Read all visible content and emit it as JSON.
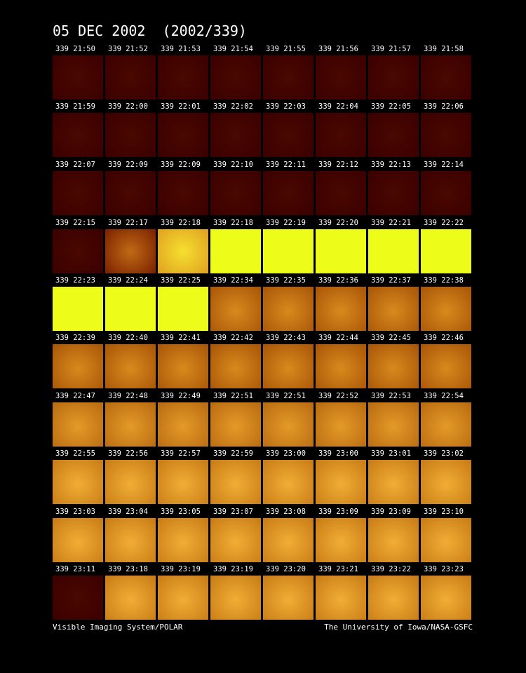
{
  "title": "05 DEC 2002  (2002/339)",
  "panels": [
    [
      "339 21:50",
      "339 21:52",
      "339 21:53",
      "339 21:54",
      "339 21:55",
      "339 21:56",
      "339 21:57",
      "339 21:58"
    ],
    [
      "339 21:59",
      "339 22:00",
      "339 22:01",
      "339 22:02",
      "339 22:03",
      "339 22:04",
      "339 22:05",
      "339 22:06"
    ],
    [
      "339 22:07",
      "339 22:09",
      "339 22:09",
      "339 22:10",
      "339 22:11",
      "339 22:12",
      "339 22:13",
      "339 22:14"
    ],
    [
      "339 22:15",
      "339 22:17",
      "339 22:18",
      "339 22:18",
      "339 22:19",
      "339 22:20",
      "339 22:21",
      "339 22:22"
    ],
    [
      "339 22:23",
      "339 22:24",
      "339 22:25",
      "339 22:34",
      "339 22:35",
      "339 22:36",
      "339 22:37",
      "339 22:38"
    ],
    [
      "339 22:39",
      "339 22:40",
      "339 22:41",
      "339 22:42",
      "339 22:43",
      "339 22:44",
      "339 22:45",
      "339 22:46"
    ],
    [
      "339 22:47",
      "339 22:48",
      "339 22:49",
      "339 22:51",
      "339 22:51",
      "339 22:52",
      "339 22:53",
      "339 22:54"
    ],
    [
      "339 22:55",
      "339 22:56",
      "339 22:57",
      "339 22:59",
      "339 23:00",
      "339 23:00",
      "339 23:01",
      "339 23:02"
    ],
    [
      "339 23:03",
      "339 23:04",
      "339 23:05",
      "339 23:07",
      "339 23:08",
      "339 23:09",
      "339 23:09",
      "339 23:10"
    ],
    [
      "339 23:11",
      "339 23:18",
      "339 23:19",
      "339 23:19",
      "339 23:20",
      "339 23:21",
      "339 23:22",
      "339 23:23"
    ]
  ],
  "footer": {
    "left": "Visible Imaging System/POLAR",
    "right": "The University of Iowa/NASA-GSFC"
  }
}
